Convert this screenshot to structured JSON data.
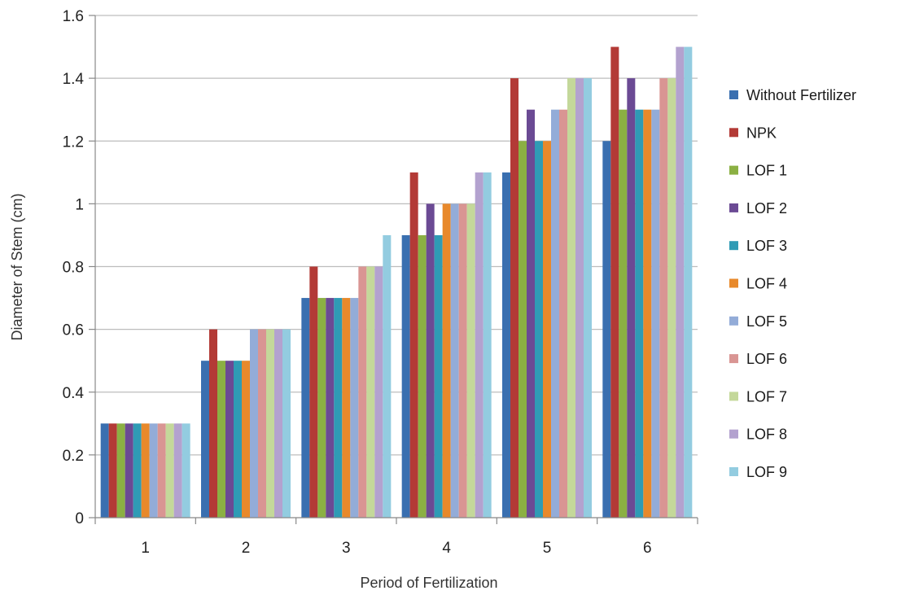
{
  "chart_data": {
    "type": "bar",
    "title": "",
    "xlabel": "Period of Fertilization",
    "ylabel": "Diameter of Stem (cm)",
    "ylim": [
      0,
      1.6
    ],
    "yticks": [
      "0",
      "0.2",
      "0.4",
      "0.6",
      "0.8",
      "1",
      "1.2",
      "1.4",
      "1.6"
    ],
    "grid": "horizontal",
    "legend_position": "right",
    "categories": [
      "1",
      "2",
      "3",
      "4",
      "5",
      "6"
    ],
    "series": [
      {
        "name": "Without Fertilizer",
        "color": "#3a6fb0",
        "values": [
          0.3,
          0.5,
          0.7,
          0.9,
          1.1,
          1.2
        ]
      },
      {
        "name": "NPK",
        "color": "#b33a36",
        "values": [
          0.3,
          0.6,
          0.8,
          1.1,
          1.4,
          1.5
        ]
      },
      {
        "name": "LOF 1",
        "color": "#8bb043",
        "values": [
          0.3,
          0.5,
          0.7,
          0.9,
          1.2,
          1.3
        ]
      },
      {
        "name": "LOF 2",
        "color": "#6b4a94",
        "values": [
          0.3,
          0.5,
          0.7,
          1.0,
          1.3,
          1.4
        ]
      },
      {
        "name": "LOF 3",
        "color": "#2f9bb5",
        "values": [
          0.3,
          0.5,
          0.7,
          0.9,
          1.2,
          1.3
        ]
      },
      {
        "name": "LOF 4",
        "color": "#e8892b",
        "values": [
          0.3,
          0.5,
          0.7,
          1.0,
          1.2,
          1.3
        ]
      },
      {
        "name": "LOF 5",
        "color": "#93acd8",
        "values": [
          0.3,
          0.6,
          0.7,
          1.0,
          1.3,
          1.3
        ]
      },
      {
        "name": "LOF 6",
        "color": "#d99593",
        "values": [
          0.3,
          0.6,
          0.8,
          1.0,
          1.3,
          1.4
        ]
      },
      {
        "name": "LOF 7",
        "color": "#c4d89a",
        "values": [
          0.3,
          0.6,
          0.8,
          1.0,
          1.4,
          1.4
        ]
      },
      {
        "name": "LOF 8",
        "color": "#b3a2cf",
        "values": [
          0.3,
          0.6,
          0.8,
          1.1,
          1.4,
          1.5
        ]
      },
      {
        "name": "LOF 9",
        "color": "#93cce0",
        "values": [
          0.3,
          0.6,
          0.9,
          1.1,
          1.4,
          1.5
        ]
      }
    ]
  }
}
